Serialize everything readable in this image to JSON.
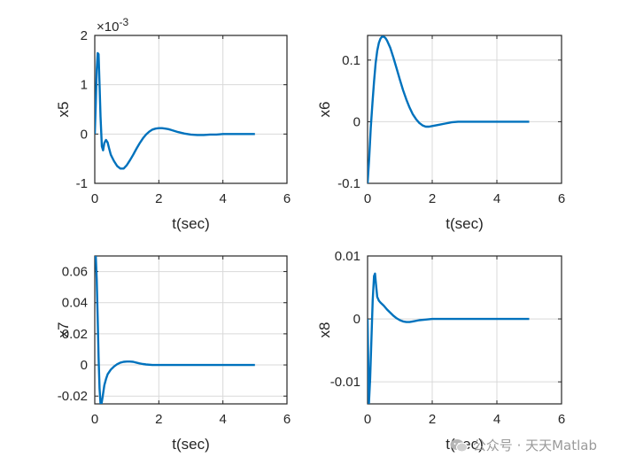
{
  "colors": {
    "line": "#0072BD",
    "axis": "#262626",
    "grid": "#d9d9d9"
  },
  "watermark": {
    "text": "公众号 · 天天Matlab",
    "icon": "wechat-icon"
  },
  "chart_data": [
    {
      "type": "line",
      "id": "x5",
      "ylabel": "x5",
      "xlabel": "t(sec)",
      "xlim": [
        0,
        6
      ],
      "ylim": [
        -1,
        2
      ],
      "xticks": [
        0,
        2,
        4,
        6
      ],
      "yticks": [
        -1,
        0,
        1,
        2
      ],
      "ytick_labels": [
        "-1",
        "0",
        "1",
        "2"
      ],
      "exponent_label": "×10",
      "exponent_power": "-3",
      "grid": true,
      "series": [
        {
          "name": "x5",
          "x": [
            0,
            0.03,
            0.06,
            0.09,
            0.12,
            0.15,
            0.18,
            0.22,
            0.26,
            0.3,
            0.35,
            0.4,
            0.45,
            0.5,
            0.6,
            0.7,
            0.8,
            0.9,
            1.0,
            1.1,
            1.2,
            1.3,
            1.4,
            1.5,
            1.6,
            1.7,
            1.8,
            1.9,
            2.0,
            2.1,
            2.2,
            2.3,
            2.4,
            2.5,
            2.6,
            2.8,
            3.0,
            3.2,
            3.4,
            3.6,
            3.8,
            4.0,
            4.2,
            4.4,
            4.6,
            4.8,
            5.0
          ],
          "y": [
            0,
            0.6,
            1.3,
            1.64,
            1.62,
            1.0,
            0.35,
            -0.25,
            -0.33,
            -0.18,
            -0.12,
            -0.17,
            -0.3,
            -0.42,
            -0.55,
            -0.65,
            -0.7,
            -0.7,
            -0.63,
            -0.53,
            -0.42,
            -0.3,
            -0.19,
            -0.09,
            -0.01,
            0.05,
            0.09,
            0.11,
            0.12,
            0.12,
            0.11,
            0.1,
            0.08,
            0.06,
            0.04,
            0.01,
            -0.01,
            -0.02,
            -0.02,
            -0.01,
            -0.01,
            0.0,
            0.0,
            0.0,
            0.0,
            0.0,
            0.0
          ]
        }
      ]
    },
    {
      "type": "line",
      "id": "x6",
      "ylabel": "x6",
      "xlabel": "t(sec)",
      "xlim": [
        0,
        6
      ],
      "ylim": [
        -0.1,
        0.14
      ],
      "xticks": [
        0,
        2,
        4,
        6
      ],
      "yticks": [
        -0.1,
        0,
        0.1
      ],
      "ytick_labels": [
        "-0.1",
        "0",
        "0.1"
      ],
      "grid": true,
      "series": [
        {
          "name": "x6",
          "x": [
            0,
            0.05,
            0.1,
            0.15,
            0.2,
            0.25,
            0.3,
            0.35,
            0.4,
            0.45,
            0.5,
            0.55,
            0.6,
            0.7,
            0.8,
            0.9,
            1.0,
            1.1,
            1.2,
            1.3,
            1.4,
            1.5,
            1.6,
            1.7,
            1.8,
            1.9,
            2.0,
            2.2,
            2.4,
            2.6,
            2.8,
            3.0,
            3.5,
            4.0,
            4.5,
            5.0
          ],
          "y": [
            -0.1,
            -0.06,
            -0.01,
            0.03,
            0.065,
            0.095,
            0.115,
            0.128,
            0.135,
            0.138,
            0.138,
            0.136,
            0.132,
            0.12,
            0.104,
            0.086,
            0.068,
            0.051,
            0.036,
            0.023,
            0.012,
            0.004,
            -0.002,
            -0.006,
            -0.008,
            -0.008,
            -0.007,
            -0.005,
            -0.003,
            -0.001,
            0.0,
            0.0,
            0.0,
            0.0,
            0.0,
            0.0
          ]
        }
      ]
    },
    {
      "type": "line",
      "id": "x7",
      "ylabel": "x7",
      "xlabel": "t(sec)",
      "xlim": [
        0,
        6
      ],
      "ylim": [
        -0.025,
        0.07
      ],
      "xticks": [
        0,
        2,
        4,
        6
      ],
      "yticks": [
        -0.02,
        0,
        0.02,
        0.04,
        0.06
      ],
      "ytick_labels": [
        "-0.02",
        "0",
        "0.02",
        "0.04",
        "0.06"
      ],
      "grid": true,
      "series": [
        {
          "name": "x7",
          "x": [
            0,
            0.03,
            0.06,
            0.09,
            0.12,
            0.15,
            0.18,
            0.21,
            0.25,
            0.3,
            0.35,
            0.4,
            0.5,
            0.6,
            0.7,
            0.8,
            0.9,
            1.0,
            1.1,
            1.2,
            1.3,
            1.4,
            1.5,
            1.6,
            1.8,
            2.0,
            2.5,
            3.0,
            3.5,
            4.0,
            4.5,
            5.0
          ],
          "y": [
            0.07,
            0.07,
            0.055,
            0.03,
            0.005,
            -0.015,
            -0.025,
            -0.025,
            -0.02,
            -0.013,
            -0.009,
            -0.006,
            -0.003,
            -0.001,
            0.0005,
            0.0015,
            0.002,
            0.0022,
            0.0022,
            0.002,
            0.0015,
            0.001,
            0.0006,
            0.0003,
            0.0,
            0.0,
            0.0,
            0.0,
            0.0,
            0.0,
            0.0,
            0.0
          ]
        }
      ]
    },
    {
      "type": "line",
      "id": "x8",
      "ylabel": "x8",
      "xlabel": "t(sec)",
      "xlim": [
        0,
        6
      ],
      "ylim": [
        -0.0135,
        0.01
      ],
      "xticks": [
        0,
        2,
        4,
        6
      ],
      "yticks": [
        -0.01,
        0,
        0.01
      ],
      "ytick_labels": [
        "-0.01",
        "0",
        "0.01"
      ],
      "grid": true,
      "series": [
        {
          "name": "x8",
          "x": [
            0,
            0.04,
            0.08,
            0.12,
            0.16,
            0.2,
            0.23,
            0.26,
            0.3,
            0.35,
            0.4,
            0.5,
            0.6,
            0.7,
            0.8,
            0.9,
            1.0,
            1.1,
            1.2,
            1.3,
            1.4,
            1.6,
            1.8,
            2.0,
            2.5,
            3.0,
            3.5,
            4.0,
            4.5,
            5.0
          ],
          "y": [
            0,
            -0.0135,
            -0.0095,
            -0.003,
            0.003,
            0.0068,
            0.0072,
            0.0055,
            0.0035,
            0.0029,
            0.0026,
            0.0021,
            0.0015,
            0.001,
            0.0005,
            0.0001,
            -0.0002,
            -0.0004,
            -0.0005,
            -0.0005,
            -0.0004,
            -0.0002,
            -0.0001,
            0.0,
            0.0,
            0.0,
            0.0,
            0.0,
            0.0,
            0.0
          ]
        }
      ]
    }
  ]
}
